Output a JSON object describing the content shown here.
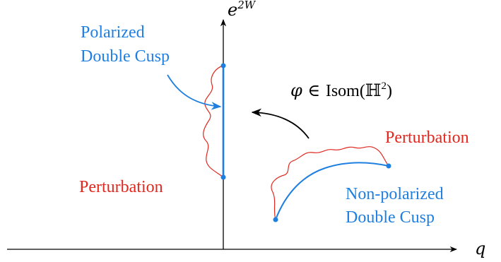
{
  "axes": {
    "x_label": "q",
    "y_label_base": "e",
    "y_label_exponent": "2W"
  },
  "labels": {
    "polarized_line1": "Polarized",
    "polarized_line2": "Double Cusp",
    "perturbation_left": "Perturbation",
    "perturbation_right": "Perturbation",
    "nonpolarized_line1": "Non-polarized",
    "nonpolarized_line2": "Double Cusp",
    "isometry_phi": "φ ∈ ",
    "isometry_rest": "Isom(ℍ",
    "isometry_sup": "2",
    "isometry_close": ")"
  },
  "colors": {
    "blue": "#1f7fe0",
    "red": "#e0281f",
    "black": "#000000"
  }
}
